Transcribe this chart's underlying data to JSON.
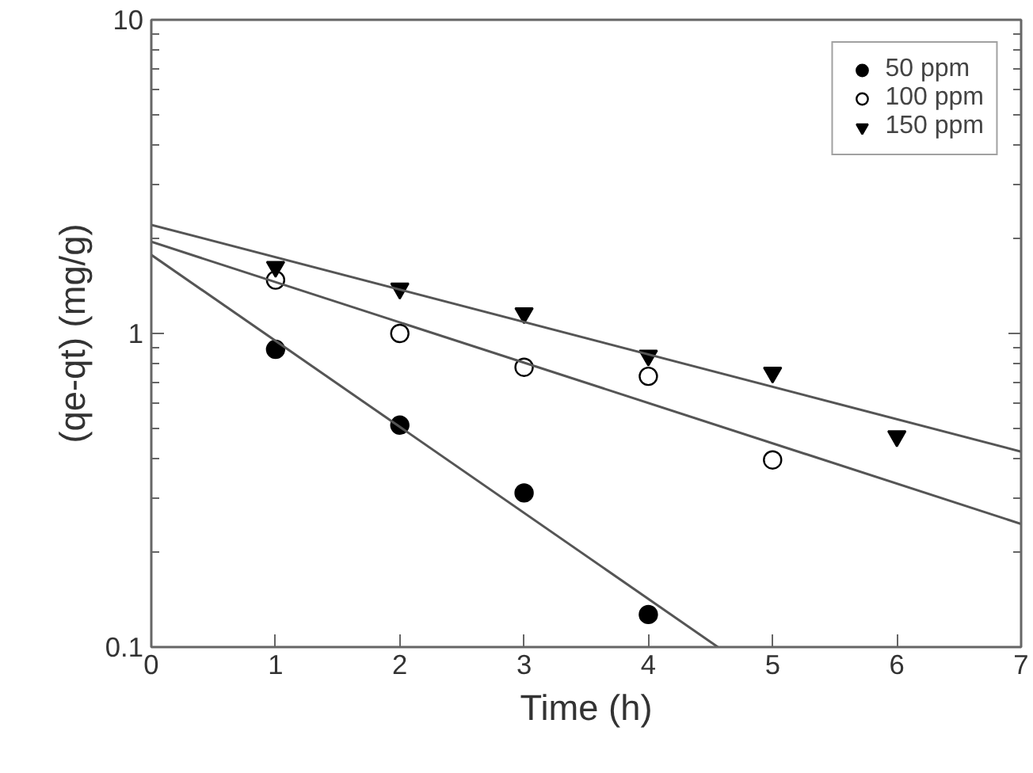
{
  "chart_data": {
    "type": "scatter",
    "xlabel": "Time (h)",
    "ylabel": "(qe-qt) (mg/g)",
    "log": "y",
    "xlim": [
      0,
      7
    ],
    "xticks": [
      0,
      1,
      2,
      3,
      4,
      5,
      6,
      7
    ],
    "ylim": [
      0.1,
      10
    ],
    "yticks": [
      0.1,
      1,
      10
    ],
    "grid": false,
    "legend": "top right",
    "series": [
      {
        "name": "50 ppm",
        "color": "#000000",
        "marker": "circle",
        "x": [
          1,
          2,
          3,
          4
        ],
        "values": [
          0.89,
          0.51,
          0.31,
          0.127
        ]
      },
      {
        "name": "100 ppm",
        "color": "#ffffff",
        "marker": "circle",
        "x": [
          1,
          2,
          3,
          4,
          5
        ],
        "values": [
          1.48,
          1.0,
          0.78,
          0.73,
          0.395
        ]
      },
      {
        "name": "150 ppm",
        "color": "#000000",
        "marker": "triangle",
        "x": [
          1,
          2,
          3,
          4,
          5,
          6
        ],
        "values": [
          1.63,
          1.39,
          1.16,
          0.85,
          0.75,
          0.47
        ]
      },
      {
        "type": "line",
        "color": "#555555",
        "marker": "none",
        "x": [
          0,
          4.56
        ],
        "values": [
          1.78,
          0.1
        ]
      },
      {
        "type": "line",
        "color": "#555555",
        "marker": "none",
        "x": [
          0,
          7
        ],
        "values": [
          1.96,
          0.247
        ]
      },
      {
        "type": "line",
        "color": "#555555",
        "marker": "none",
        "x": [
          0,
          7
        ],
        "values": [
          2.22,
          0.42
        ]
      }
    ]
  }
}
